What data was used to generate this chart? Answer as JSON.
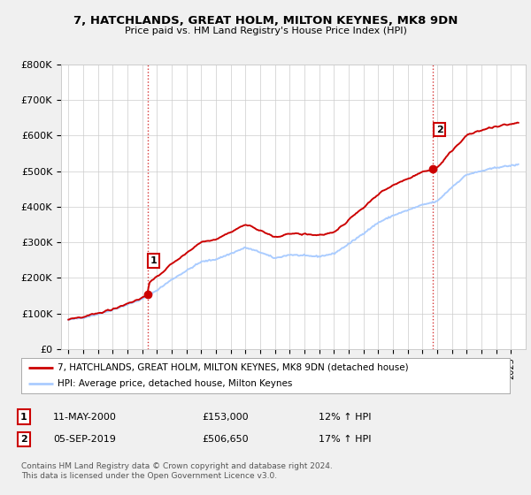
{
  "title": "7, HATCHLANDS, GREAT HOLM, MILTON KEYNES, MK8 9DN",
  "subtitle": "Price paid vs. HM Land Registry's House Price Index (HPI)",
  "ylim": [
    0,
    800000
  ],
  "yticks": [
    0,
    100000,
    200000,
    300000,
    400000,
    500000,
    600000,
    700000,
    800000
  ],
  "ytick_labels": [
    "£0",
    "£100K",
    "£200K",
    "£300K",
    "£400K",
    "£500K",
    "£600K",
    "£700K",
    "£800K"
  ],
  "xlim_min": 1994.5,
  "xlim_max": 2026.0,
  "sale1_date": 2000.36,
  "sale1_price": 153000,
  "sale2_date": 2019.67,
  "sale2_price": 506650,
  "red_line_color": "#cc0000",
  "blue_line_color": "#aaccff",
  "marker_color": "#cc0000",
  "vline_color": "#cc0000",
  "legend_label1": "7, HATCHLANDS, GREAT HOLM, MILTON KEYNES, MK8 9DN (detached house)",
  "legend_label2": "HPI: Average price, detached house, Milton Keynes",
  "note1_num": "1",
  "note1_date": "11-MAY-2000",
  "note1_price": "£153,000",
  "note1_hpi": "12% ↑ HPI",
  "note2_num": "2",
  "note2_date": "05-SEP-2019",
  "note2_price": "£506,650",
  "note2_hpi": "17% ↑ HPI",
  "footer": "Contains HM Land Registry data © Crown copyright and database right 2024.\nThis data is licensed under the Open Government Licence v3.0.",
  "bg_color": "#f0f0f0",
  "plot_bg_color": "#ffffff"
}
